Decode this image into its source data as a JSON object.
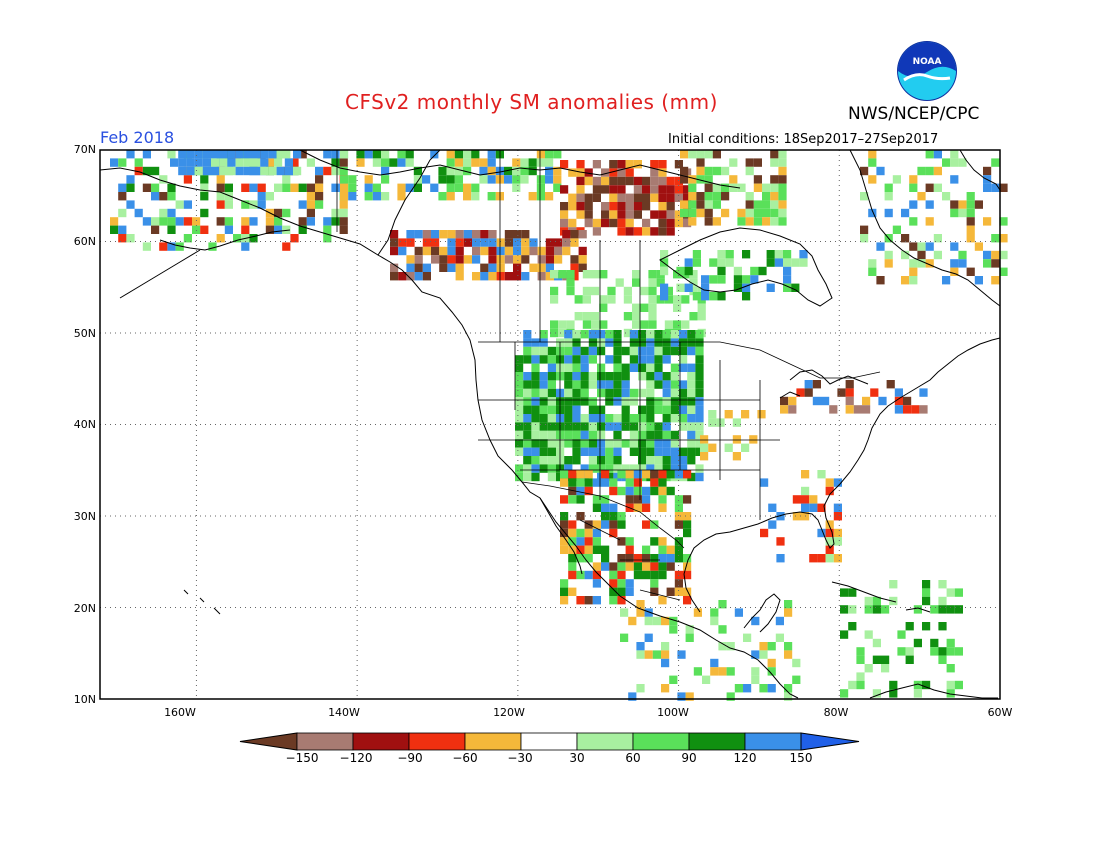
{
  "header": {
    "title": "CFSv2 monthly SM anomalies (mm)",
    "agency": "NWS/NCEP/CPC",
    "period": "Feb 2018",
    "initial_conditions": "Initial conditions: 18Sep2017–27Sep2017",
    "logo_icon": "noaa-logo-icon"
  },
  "map": {
    "lon_range": [
      -172,
      -60
    ],
    "lat_range": [
      10,
      70
    ],
    "lat_labels": [
      "70N",
      "60N",
      "50N",
      "40N",
      "30N",
      "20N",
      "10N"
    ],
    "lon_labels": [
      "160W",
      "140W",
      "120W",
      "100W",
      "80W",
      "60W"
    ],
    "gridlines": "dotted",
    "coastlines": true,
    "political_boundaries": true
  },
  "colorbar": {
    "labels": [
      "−150",
      "−120",
      "−90",
      "−60",
      "−30",
      "30",
      "60",
      "90",
      "120",
      "150"
    ],
    "colors": [
      "#6b3a24",
      "#a87b72",
      "#a01010",
      "#f03010",
      "#f5b83a",
      "#ffffff",
      "#a8f0a0",
      "#5ae05a",
      "#109010",
      "#3a90e8",
      "#2060e8"
    ]
  },
  "anomaly_classes": {
    "dry_extreme": "#6b3a24",
    "dry_strong": "#a87b72",
    "dry_high": "#a01010",
    "dry_mid": "#f03010",
    "dry_low": "#f5b83a",
    "wet_low": "#a8f0a0",
    "wet_mid": "#5ae05a",
    "wet_high": "#109010",
    "wet_strong": "#3a90e8"
  }
}
